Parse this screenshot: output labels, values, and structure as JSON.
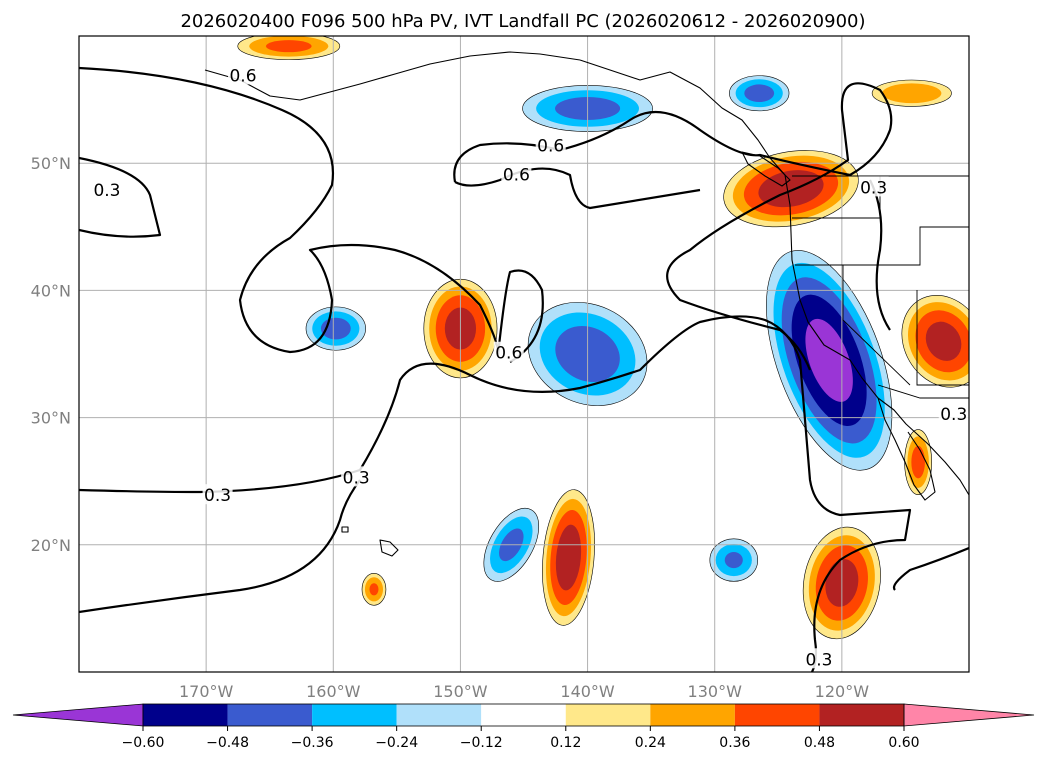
{
  "chart_data": {
    "type": "heatmap",
    "title": "2026020400 F096 500 hPa PV, IVT Landfall PC (2026020612 - 2026020900)",
    "map_extent": {
      "lon": [
        -180,
        -110
      ],
      "lat": [
        10,
        60
      ]
    },
    "lat_ticks": [
      {
        "value": 50,
        "label": "50°N"
      },
      {
        "value": 40,
        "label": "40°N"
      },
      {
        "value": 30,
        "label": "30°N"
      },
      {
        "value": 20,
        "label": "20°N"
      }
    ],
    "lon_ticks": [
      {
        "value": -170,
        "label": "170°W"
      },
      {
        "value": -160,
        "label": "160°W"
      },
      {
        "value": -150,
        "label": "150°W"
      },
      {
        "value": -140,
        "label": "140°W"
      },
      {
        "value": -130,
        "label": "130°W"
      },
      {
        "value": -120,
        "label": "120°W"
      }
    ],
    "colorbar": {
      "levels": [
        -0.6,
        -0.48,
        -0.36,
        -0.24,
        -0.12,
        0.12,
        0.24,
        0.36,
        0.48,
        0.6
      ],
      "labels": [
        "−0.60",
        "−0.48",
        "−0.36",
        "−0.24",
        "−0.12",
        "0.12",
        "0.24",
        "0.36",
        "0.48",
        "0.60"
      ],
      "colors": [
        "#9a35d6",
        "#00008b",
        "#3a5bcf",
        "#00bfff",
        "#b0e0fa",
        "#ffffff",
        "#ffe88a",
        "#ffa500",
        "#ff4500",
        "#b22222",
        "#ff85a8"
      ],
      "extend": "both"
    },
    "contour_levels": [
      "0.3",
      "0.6"
    ],
    "pv_contour_labels": [
      {
        "text": "0.6",
        "lon": -167.1,
        "lat": 56.9
      },
      {
        "text": "0.6",
        "lon": -142.9,
        "lat": 51.4
      },
      {
        "text": "0.6",
        "lon": -145.6,
        "lat": 49.1
      },
      {
        "text": "0.6",
        "lon": -146.2,
        "lat": 35.1
      },
      {
        "text": "0.3",
        "lon": -177.8,
        "lat": 47.9
      },
      {
        "text": "0.3",
        "lon": -169.1,
        "lat": 23.9
      },
      {
        "text": "0.3",
        "lon": -158.2,
        "lat": 25.3
      },
      {
        "text": "0.3",
        "lon": -117.5,
        "lat": 48.1
      },
      {
        "text": "0.3",
        "lon": -111.2,
        "lat": 30.3
      },
      {
        "text": "0.3",
        "lon": -121.8,
        "lat": 11.0
      }
    ],
    "ivt_pc_regions": [
      {
        "name": "pacific-nw-positive",
        "lon": -124.0,
        "lat": 48.0,
        "rx": 4.8,
        "ry": 2.6,
        "rot": -10,
        "peak": 0.55
      },
      {
        "name": "nw-coast-positive",
        "lon": -114.5,
        "lat": 55.5,
        "rx": 3.0,
        "ry": 1.0,
        "rot": 0,
        "peak": 0.35
      },
      {
        "name": "alaska-positive",
        "lon": -163.5,
        "lat": 59.2,
        "rx": 3.8,
        "ry": 1.0,
        "rot": 0,
        "peak": 0.38
      },
      {
        "name": "central-pacific-positive",
        "lon": -150.0,
        "lat": 37.0,
        "rx": 2.6,
        "ry": 3.5,
        "rot": 0,
        "peak": 0.52
      },
      {
        "name": "california-negative",
        "lon": -121.0,
        "lat": 34.5,
        "rx": 3.6,
        "ry": 8.0,
        "rot": -20,
        "peak": -0.64
      },
      {
        "name": "subtropical-negative",
        "lon": -140.0,
        "lat": 35.0,
        "rx": 4.5,
        "ry": 3.6,
        "rot": 25,
        "peak": -0.42
      },
      {
        "name": "alaska-gulf-negative",
        "lon": -140.0,
        "lat": 54.3,
        "rx": 4.8,
        "ry": 1.7,
        "rot": 0,
        "peak": -0.4
      },
      {
        "name": "bc-negative",
        "lon": -126.5,
        "lat": 55.5,
        "rx": 2.2,
        "ry": 1.3,
        "rot": 0,
        "peak": -0.4
      },
      {
        "name": "west-negative",
        "lon": -159.8,
        "lat": 37.0,
        "rx": 2.2,
        "ry": 1.6,
        "rot": 0,
        "peak": -0.4
      },
      {
        "name": "tropical-positive",
        "lon": -141.5,
        "lat": 19.0,
        "rx": 1.8,
        "ry": 4.8,
        "rot": 5,
        "peak": 0.55
      },
      {
        "name": "baja-positive",
        "lon": -120.0,
        "lat": 17.0,
        "rx": 2.7,
        "ry": 4.0,
        "rot": 10,
        "peak": 0.52
      },
      {
        "name": "southwest-us-positive",
        "lon": -112.0,
        "lat": 36.0,
        "rx": 2.8,
        "ry": 3.4,
        "rot": -30,
        "peak": 0.52
      },
      {
        "name": "mexico-positive",
        "lon": -114.0,
        "lat": 26.5,
        "rx": 1.0,
        "ry": 2.4,
        "rot": 0,
        "peak": 0.4
      },
      {
        "name": "tropical-negative",
        "lon": -146.0,
        "lat": 20.0,
        "rx": 1.6,
        "ry": 3.0,
        "rot": 30,
        "peak": -0.38
      },
      {
        "name": "hawaii-east-negative",
        "lon": -128.5,
        "lat": 18.8,
        "rx": 1.8,
        "ry": 1.6,
        "rot": 0,
        "peak": -0.36
      },
      {
        "name": "hawaii-positive",
        "lon": -156.8,
        "lat": 16.5,
        "rx": 0.9,
        "ry": 1.2,
        "rot": 0,
        "peak": 0.36
      }
    ]
  }
}
